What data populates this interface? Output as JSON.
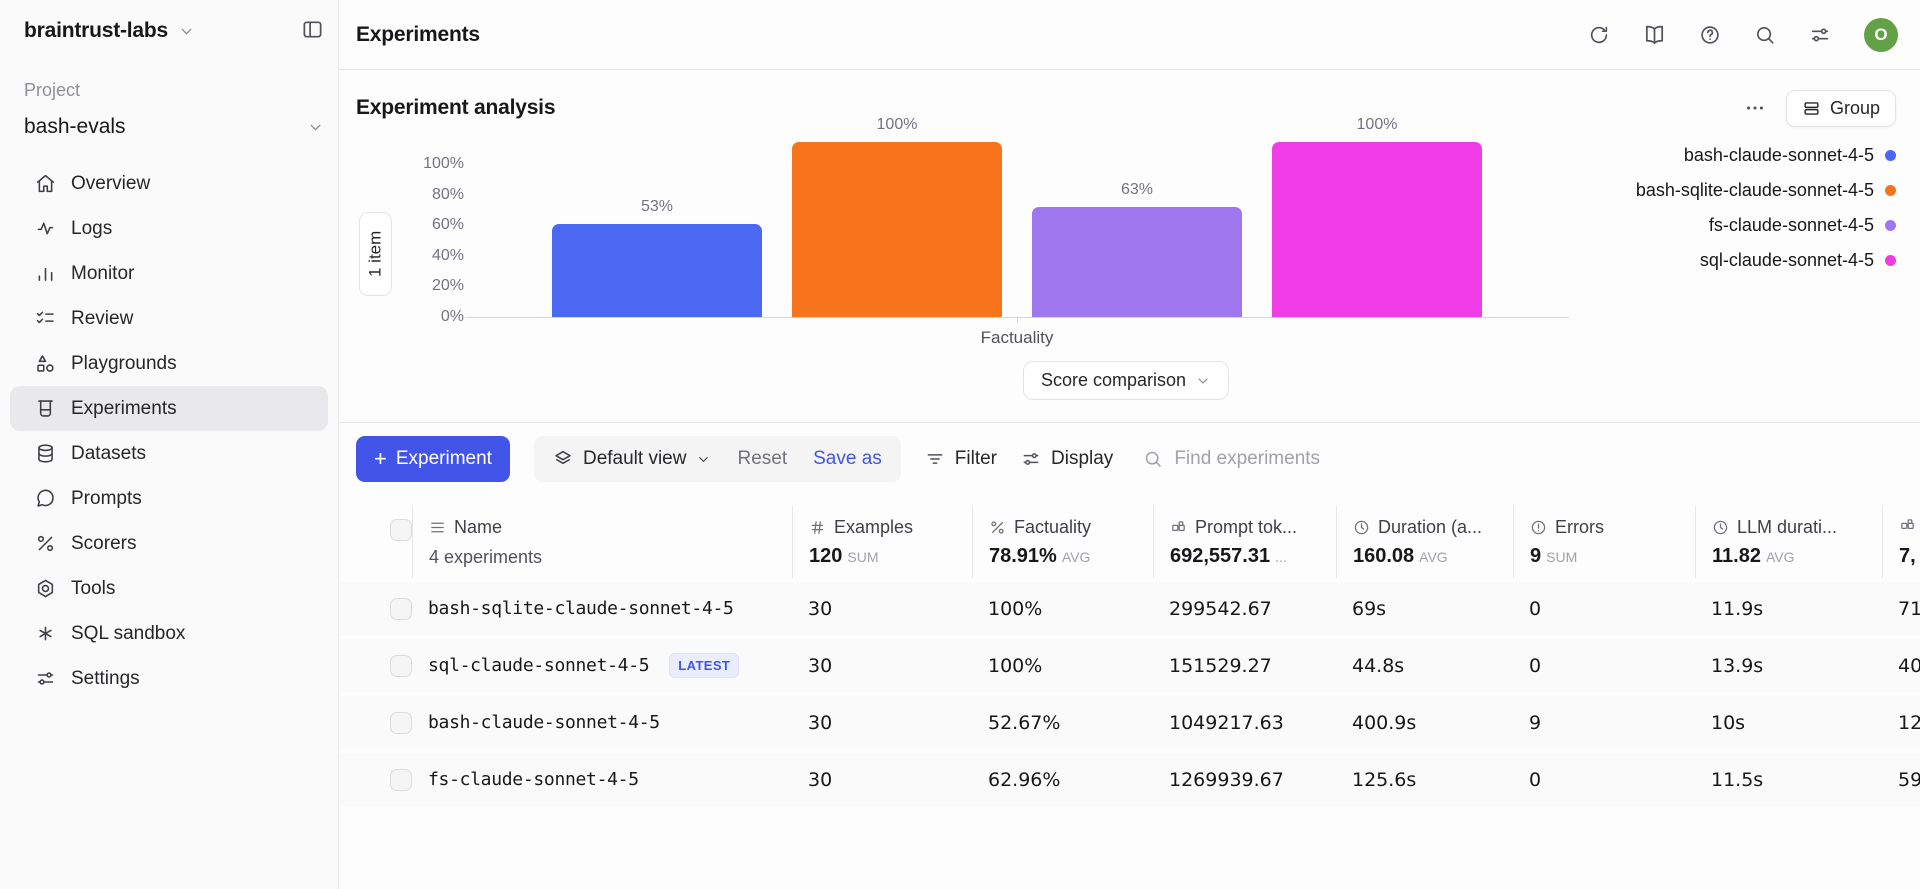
{
  "app": {
    "workspace": "braintrust-labs",
    "page_title": "Experiments",
    "avatar_letter": "O"
  },
  "colors": {
    "accent_blue": "#4355e8",
    "avatar_green": "#63a146",
    "bar_blue": "#4a68f2",
    "bar_orange": "#f7741c",
    "bar_purple": "#9e76ee",
    "bar_magenta": "#ef3ce7"
  },
  "sidebar": {
    "project_label": "Project",
    "project_name": "bash-evals",
    "items": [
      {
        "label": "Overview"
      },
      {
        "label": "Logs"
      },
      {
        "label": "Monitor"
      },
      {
        "label": "Review"
      },
      {
        "label": "Playgrounds"
      },
      {
        "label": "Experiments"
      },
      {
        "label": "Datasets"
      },
      {
        "label": "Prompts"
      },
      {
        "label": "Scorers"
      },
      {
        "label": "Tools"
      },
      {
        "label": "SQL sandbox"
      },
      {
        "label": "Settings"
      }
    ]
  },
  "analysis": {
    "title": "Experiment analysis",
    "group_button": "Group",
    "items_badge": "1 item",
    "score_selector": "Score comparison"
  },
  "chart_data": {
    "type": "bar",
    "title": "Experiment analysis",
    "categories": [
      "Factuality"
    ],
    "xlabel": "Factuality",
    "ylim": [
      0,
      100
    ],
    "yticks": [
      "100%",
      "80%",
      "60%",
      "40%",
      "20%",
      "0%"
    ],
    "grid": false,
    "legend_position": "right",
    "series": [
      {
        "name": "bash-claude-sonnet-4-5",
        "color": "#4a68f2",
        "values": [
          53
        ]
      },
      {
        "name": "bash-sqlite-claude-sonnet-4-5",
        "color": "#f7741c",
        "values": [
          100
        ]
      },
      {
        "name": "fs-claude-sonnet-4-5",
        "color": "#9e76ee",
        "values": [
          63
        ]
      },
      {
        "name": "sql-claude-sonnet-4-5",
        "color": "#ef3ce7",
        "values": [
          100
        ]
      }
    ],
    "bar_labels": [
      "53%",
      "100%",
      "63%",
      "100%"
    ]
  },
  "toolbar": {
    "new_experiment": "Experiment",
    "view_selector": "Default view",
    "reset": "Reset",
    "save_as": "Save as",
    "filter": "Filter",
    "display": "Display",
    "find_placeholder": "Find experiments"
  },
  "table": {
    "columns": [
      {
        "label": "Name",
        "summary": "4 experiments"
      },
      {
        "label": "Examples",
        "value": "120",
        "agg": "SUM"
      },
      {
        "label": "Factuality",
        "value": "78.91%",
        "agg": "AVG"
      },
      {
        "label": "Prompt tok...",
        "value": "692,557.31",
        "agg": "..."
      },
      {
        "label": "Duration (a...",
        "value": "160.08",
        "agg": "AVG"
      },
      {
        "label": "Errors",
        "value": "9",
        "agg": "SUM"
      },
      {
        "label": "LLM durati...",
        "value": "11.82",
        "agg": "AVG"
      },
      {
        "label": "",
        "value": "7,",
        "agg": ""
      }
    ],
    "rows": [
      {
        "name": "bash-sqlite-claude-sonnet-4-5",
        "latest": "",
        "examples": "30",
        "factuality": "100%",
        "prompt_tokens": "299542.67",
        "duration": "69s",
        "errors": "0",
        "llm_duration": "11.9s",
        "last": "71"
      },
      {
        "name": "sql-claude-sonnet-4-5",
        "latest": "LATEST",
        "examples": "30",
        "factuality": "100%",
        "prompt_tokens": "151529.27",
        "duration": "44.8s",
        "errors": "0",
        "llm_duration": "13.9s",
        "last": "40"
      },
      {
        "name": "bash-claude-sonnet-4-5",
        "latest": "",
        "examples": "30",
        "factuality": "52.67%",
        "prompt_tokens": "1049217.63",
        "duration": "400.9s",
        "errors": "9",
        "llm_duration": "10s",
        "last": "12"
      },
      {
        "name": "fs-claude-sonnet-4-5",
        "latest": "",
        "examples": "30",
        "factuality": "62.96%",
        "prompt_tokens": "1269939.67",
        "duration": "125.6s",
        "errors": "0",
        "llm_duration": "11.5s",
        "last": "59"
      }
    ]
  }
}
